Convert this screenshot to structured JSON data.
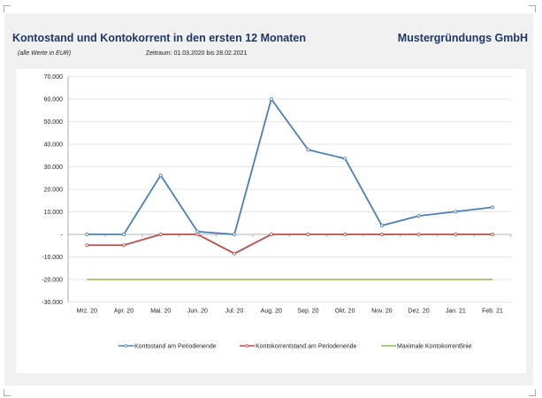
{
  "header": {
    "title": "Kontostand und Kontokorrent in den ersten 12 Monaten",
    "company": "Mustergründungs GmbH",
    "unit_note": "(alle Werte in EUR)",
    "period": "Zeitraum: 01.03.2020 bis 28.02.2021"
  },
  "chart_data": {
    "type": "line",
    "categories": [
      "Mrz. 20",
      "Apr. 20",
      "Mai. 20",
      "Jun. 20",
      "Jul. 20",
      "Aug. 20",
      "Sep. 20",
      "Okt. 20",
      "Nov. 20",
      "Dez. 20",
      "Jan. 21",
      "Feb. 21"
    ],
    "ylim": [
      -30000,
      70000
    ],
    "yticks": [
      70000,
      60000,
      50000,
      40000,
      30000,
      20000,
      10000,
      0,
      -10000,
      -20000,
      -30000
    ],
    "ytick_labels": [
      "70.000",
      "60.000",
      "50.000",
      "40.000",
      "30.000",
      "20.000",
      "10.000",
      "-",
      "-10.000",
      "-20.000",
      "-30.000"
    ],
    "grid": true,
    "legend": "bottom",
    "series": [
      {
        "name": "Kontostand am Periodenende",
        "color": "#4a7ebb",
        "markers": true,
        "values": [
          0,
          0,
          26200,
          1200,
          0,
          60000,
          37500,
          33600,
          3900,
          8200,
          10100,
          12000
        ]
      },
      {
        "name": "Kontokorrentstand am Periodenende",
        "color": "#be4b48",
        "markers": true,
        "values": [
          -4800,
          -4800,
          0,
          0,
          -8500,
          0,
          0,
          0,
          0,
          0,
          0,
          0
        ]
      },
      {
        "name": "Maximale Kontokorrentlinie",
        "color": "#8cbc4f",
        "markers": false,
        "values": [
          -20000,
          -20000,
          -20000,
          -20000,
          -20000,
          -20000,
          -20000,
          -20000,
          -20000,
          -20000,
          -20000,
          -20000
        ]
      }
    ]
  }
}
